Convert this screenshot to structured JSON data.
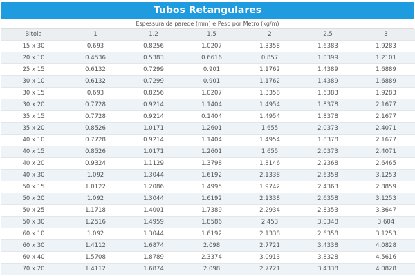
{
  "title": "Tubos Retangulares",
  "subtitle": "Espessura da parede (mm) e Peso por Metro (kg/m)",
  "table": {
    "header": [
      "Bitola",
      "1",
      "1.2",
      "1.5",
      "2",
      "2.5",
      "3"
    ],
    "rows": [
      [
        "15 x 30",
        "0.693",
        "0.8256",
        "1.0207",
        "1.3358",
        "1.6383",
        "1.9283"
      ],
      [
        "20 x 10",
        "0.4536",
        "0.5383",
        "0.6616",
        "0.857",
        "1.0399",
        "1.2101"
      ],
      [
        "25 x 15",
        "0.6132",
        "0.7299",
        "0.901",
        "1.1762",
        "1.4389",
        "1.6889"
      ],
      [
        "30 x 10",
        "0.6132",
        "0.7299",
        "0.901",
        "1.1762",
        "1.4389",
        "1.6889"
      ],
      [
        "30 x 15",
        "0.693",
        "0.8256",
        "1.0207",
        "1.3358",
        "1.6383",
        "1.9283"
      ],
      [
        "30 x 20",
        "0.7728",
        "0.9214",
        "1.1404",
        "1.4954",
        "1.8378",
        "2.1677"
      ],
      [
        "35 x 15",
        "0.7728",
        "0.9214",
        "0.1404",
        "1.4954",
        "1.8378",
        "2.1677"
      ],
      [
        "35 x 20",
        "0.8526",
        "1.0171",
        "1.2601",
        "1.655",
        "2.0373",
        "2.4071"
      ],
      [
        "40 x 10",
        "0.7728",
        "0.9214",
        "1.1404",
        "1.4954",
        "1.8378",
        "2.1677"
      ],
      [
        "40 x 15",
        "0.8526",
        "1.0171",
        "1.2601",
        "1.655",
        "2.0373",
        "2.4071"
      ],
      [
        "40 x 20",
        "0.9324",
        "1.1129",
        "1.3798",
        "1.8146",
        "2.2368",
        "2.6465"
      ],
      [
        "40 x 30",
        "1.092",
        "1.3044",
        "1.6192",
        "2.1338",
        "2.6358",
        "3.1253"
      ],
      [
        "50 x 15",
        "1.0122",
        "1.2086",
        "1.4995",
        "1.9742",
        "2.4363",
        "2.8859"
      ],
      [
        "50 x 20",
        "1.092",
        "1.3044",
        "1.6192",
        "2.1338",
        "2.6358",
        "3.1253"
      ],
      [
        "50 x 25",
        "1.1718",
        "1.4001",
        "1.7389",
        "2.2934",
        "2.8353",
        "3.3647"
      ],
      [
        "50 x 30",
        "1.2516",
        "1.4959",
        "1.8586",
        "2.453",
        "3.0348",
        "3.604"
      ],
      [
        "60 x 10",
        "1.092",
        "1.3044",
        "1.6192",
        "2.1338",
        "2.6358",
        "3.1253"
      ],
      [
        "60 x 30",
        "1.4112",
        "1.6874",
        "2.098",
        "2.7721",
        "3.4338",
        "4.0828"
      ],
      [
        "60 x 40",
        "1.5708",
        "1.8789",
        "2.3374",
        "3.0913",
        "3.8328",
        "4.5616"
      ],
      [
        "70 x 20",
        "1.4112",
        "1.6874",
        "2.098",
        "2.7721",
        "3.4338",
        "4.0828"
      ]
    ]
  }
}
